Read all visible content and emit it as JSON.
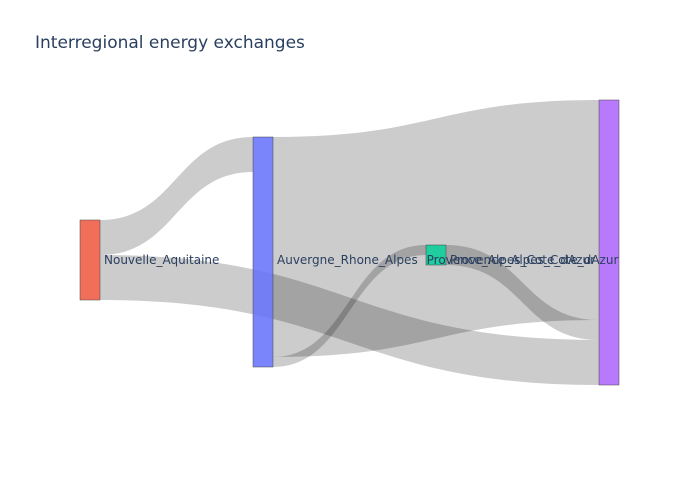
{
  "chart_data": {
    "type": "sankey",
    "title": "Interregional energy exchanges",
    "nodes": [
      {
        "name": "Nouvelle_Aquitaine",
        "color": "#ef553b"
      },
      {
        "name": "Auvergne_Rhone_Alpes",
        "color": "#636efa"
      },
      {
        "name": "Provence_Alpes_Cote_dAzur",
        "color": "#00cc96"
      },
      {
        "name": "Provence_Alpes_Cote_dAzur",
        "color": "#ab63fa"
      }
    ],
    "links": [
      {
        "source": 0,
        "target": 1,
        "value": 1.75
      },
      {
        "source": 0,
        "target": 3,
        "value": 2.25
      },
      {
        "source": 1,
        "target": 3,
        "value": 11.0
      },
      {
        "source": 1,
        "target": 2,
        "value": 0.5
      },
      {
        "source": 2,
        "target": 3,
        "value": 1.0
      }
    ],
    "link_color": "#000000",
    "link_opacity": 0.2
  }
}
